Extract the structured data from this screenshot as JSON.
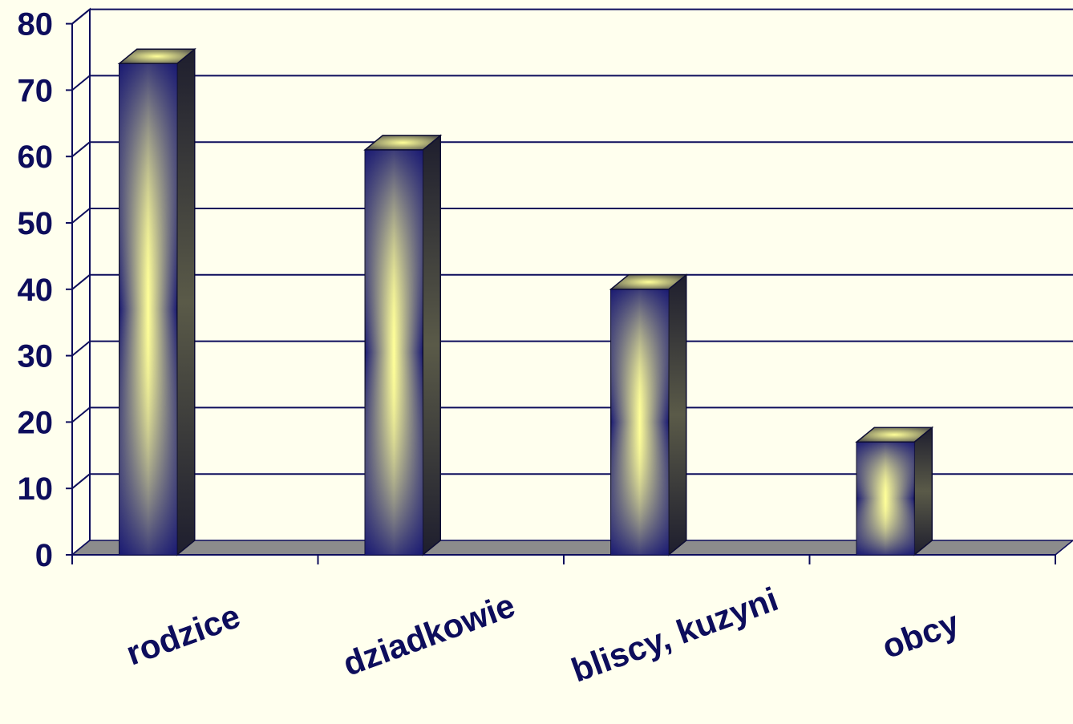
{
  "chart_data": {
    "type": "bar",
    "style": "3d-column",
    "categories": [
      "rodzice",
      "dziadkowie",
      "bliscy, kuzyni",
      "obcy"
    ],
    "values": [
      74,
      61,
      40,
      17
    ],
    "ylim": [
      0,
      80
    ],
    "yticks": [
      "0",
      "10",
      "20",
      "30",
      "40",
      "50",
      "60",
      "70",
      "80"
    ],
    "grid": true,
    "legend": "none",
    "title": "",
    "xlabel": "",
    "ylabel": ""
  },
  "colors": {
    "background": "#FFFFEE",
    "text": "#0D0D5C",
    "bar_dark": "#1A1A73",
    "bar_light": "#FFFF99",
    "bar_side": "#2A2A3A",
    "floor": "#8C8C8C",
    "grid": "#0D0D5C"
  }
}
